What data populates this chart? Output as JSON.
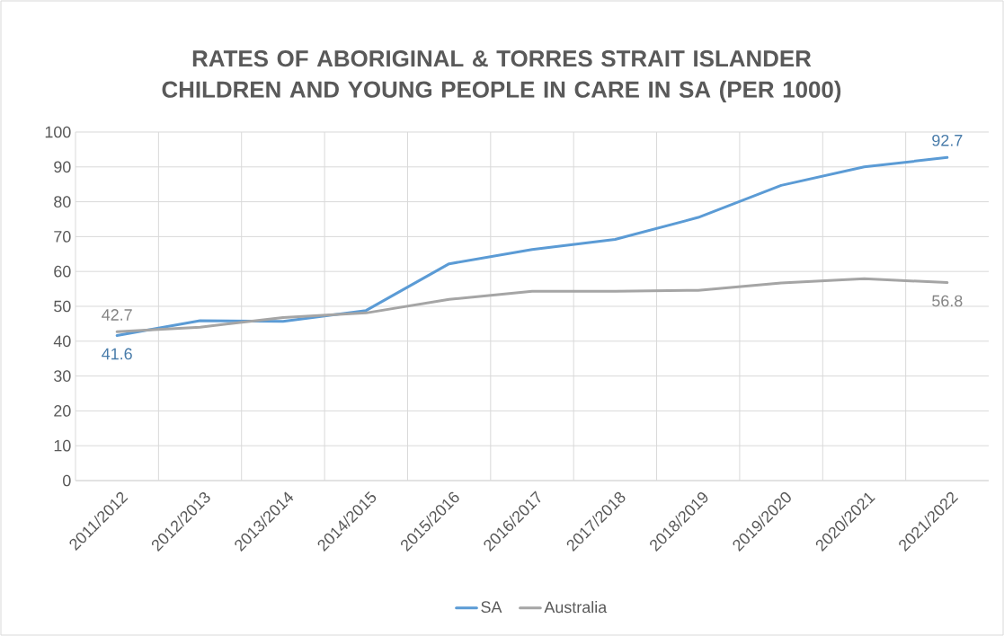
{
  "chart_data": {
    "type": "line",
    "title": "RATES OF ABORIGINAL & TORRES STRAIT ISLANDER CHILDREN AND YOUNG PEOPLE IN CARE IN SA (PER 1000)",
    "categories": [
      "2011/2012",
      "2012/2013",
      "2013/2014",
      "2014/2015",
      "2015/2016",
      "2016/2017",
      "2017/2018",
      "2018/2019",
      "2019/2020",
      "2020/2021",
      "2021/2022"
    ],
    "series": [
      {
        "name": "SA",
        "color": "#5b9bd5",
        "values": [
          41.6,
          45.9,
          45.7,
          48.8,
          62.2,
          66.3,
          69.2,
          75.5,
          84.7,
          90.0,
          92.7
        ],
        "value_labels": [
          "41.6",
          null,
          null,
          null,
          null,
          null,
          null,
          null,
          null,
          null,
          "92.7"
        ]
      },
      {
        "name": "Australia",
        "color": "#a5a5a5",
        "values": [
          42.7,
          44.0,
          46.8,
          48.1,
          52.0,
          54.3,
          54.3,
          54.6,
          56.7,
          57.9,
          56.8
        ],
        "value_labels": [
          "42.7",
          null,
          null,
          null,
          null,
          null,
          null,
          null,
          null,
          null,
          "56.8"
        ]
      }
    ],
    "ylim": [
      0,
      100
    ],
    "yticks": [
      0,
      10,
      20,
      30,
      40,
      50,
      60,
      70,
      80,
      90,
      100
    ],
    "grid": true,
    "legend": "bottom",
    "marker": "none",
    "line_style": "solid"
  }
}
